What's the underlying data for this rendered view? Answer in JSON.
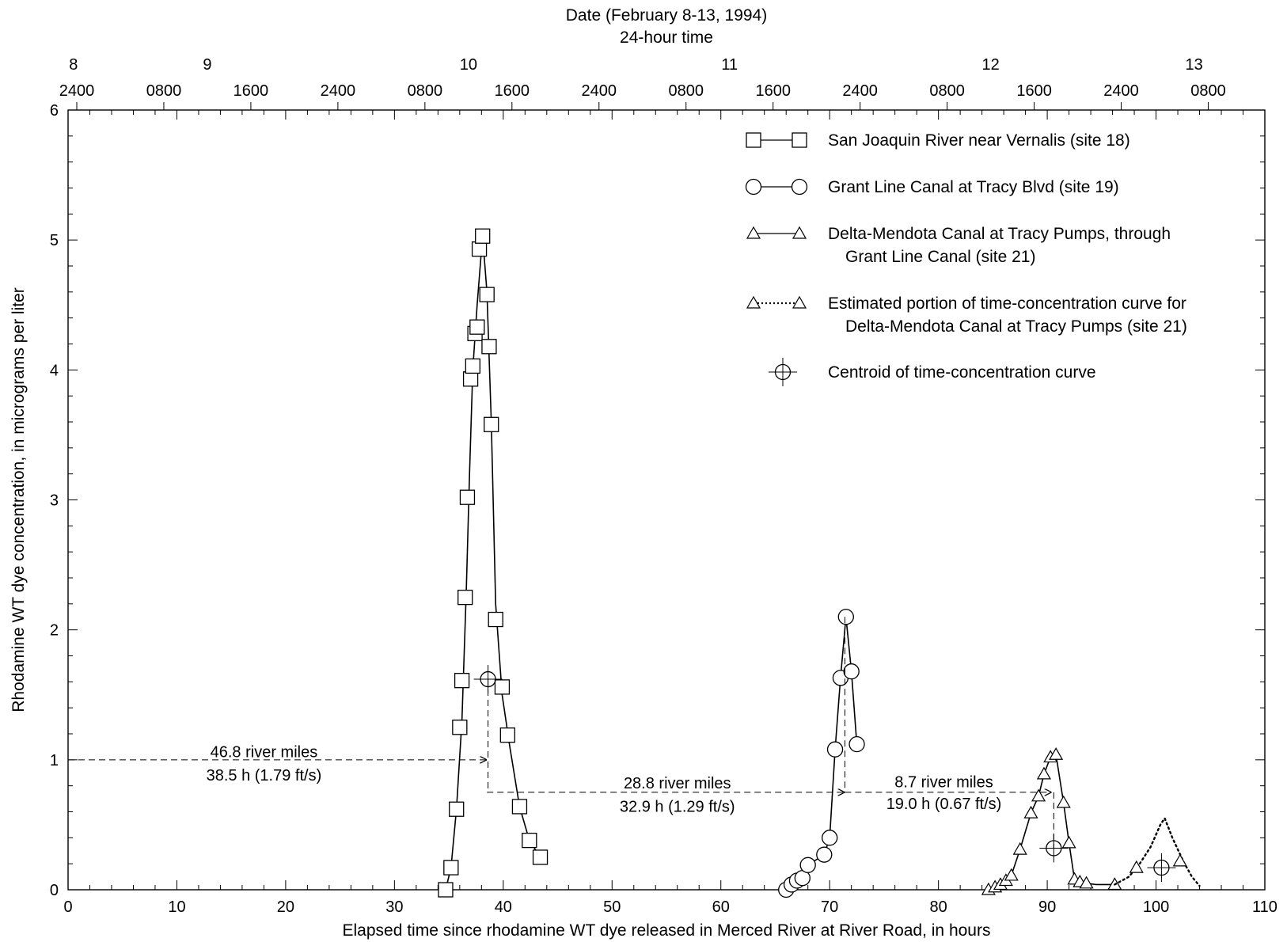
{
  "chart_data": {
    "type": "scatter",
    "xlabel": "Elapsed time since rhodamine WT dye released in Merced River at River Road, in hours",
    "ylabel": "Rhodamine WT dye concentration, in micrograms per liter",
    "top_title": "Date (February 8-13, 1994)",
    "top_subtitle": "24-hour time",
    "xlim": [
      0,
      110
    ],
    "ylim": [
      0,
      6
    ],
    "x_ticks": [
      0,
      10,
      20,
      30,
      40,
      50,
      60,
      70,
      80,
      90,
      100,
      110
    ],
    "y_ticks": [
      0,
      1,
      2,
      3,
      4,
      5,
      6
    ],
    "x_tick_labels": [
      "0",
      "10",
      "20",
      "30",
      "40",
      "50",
      "60",
      "70",
      "80",
      "90",
      "100",
      "110"
    ],
    "y_tick_labels": [
      "0",
      "1",
      "2",
      "3",
      "4",
      "5",
      "6"
    ],
    "x_minor_step": 2,
    "y_minor_step": 0.2,
    "top_time_labels": [
      {
        "x": 0.8,
        "label": "2400"
      },
      {
        "x": 8.8,
        "label": "0800"
      },
      {
        "x": 16.8,
        "label": "1600"
      },
      {
        "x": 24.8,
        "label": "2400"
      },
      {
        "x": 32.8,
        "label": "0800"
      },
      {
        "x": 40.8,
        "label": "1600"
      },
      {
        "x": 48.8,
        "label": "2400"
      },
      {
        "x": 56.8,
        "label": "0800"
      },
      {
        "x": 64.8,
        "label": "1600"
      },
      {
        "x": 72.8,
        "label": "2400"
      },
      {
        "x": 80.8,
        "label": "0800"
      },
      {
        "x": 88.8,
        "label": "1600"
      },
      {
        "x": 96.8,
        "label": "2400"
      },
      {
        "x": 104.8,
        "label": "0800"
      }
    ],
    "top_date_labels": [
      {
        "x": 0.5,
        "label": "8"
      },
      {
        "x": 12.8,
        "label": "9"
      },
      {
        "x": 36.8,
        "label": "10"
      },
      {
        "x": 60.8,
        "label": "11"
      },
      {
        "x": 84.8,
        "label": "12"
      },
      {
        "x": 103.5,
        "label": "13"
      }
    ],
    "legend_position": "top-right",
    "legend": [
      {
        "marker": "square",
        "line": "solid",
        "lines": [
          "San Joaquin River near Vernalis (site 18)"
        ]
      },
      {
        "marker": "circle",
        "line": "solid",
        "lines": [
          "Grant Line Canal at Tracy Blvd (site 19)"
        ]
      },
      {
        "marker": "triangle",
        "line": "solid",
        "lines": [
          "Delta-Mendota Canal at Tracy Pumps, through",
          "Grant Line Canal (site 21)"
        ]
      },
      {
        "marker": "triangle",
        "line": "dotted",
        "lines": [
          "Estimated portion of time-concentration curve for",
          "Delta-Mendota Canal at Tracy Pumps (site 21)"
        ]
      },
      {
        "marker": "centroid",
        "line": "none",
        "lines": [
          "Centroid of time-concentration curve"
        ]
      }
    ],
    "series": [
      {
        "marker": "square",
        "points": [
          [
            34.7,
            0.0
          ],
          [
            35.2,
            0.17
          ],
          [
            35.7,
            0.62
          ],
          [
            36.0,
            1.25
          ],
          [
            36.2,
            1.61
          ],
          [
            36.5,
            2.25
          ],
          [
            36.7,
            3.02
          ],
          [
            37.0,
            3.93
          ],
          [
            37.2,
            4.03
          ],
          [
            37.4,
            4.28
          ],
          [
            37.6,
            4.33
          ],
          [
            37.8,
            4.93
          ],
          [
            38.1,
            5.03
          ],
          [
            38.5,
            4.58
          ],
          [
            38.7,
            4.18
          ],
          [
            38.9,
            3.58
          ],
          [
            39.3,
            2.08
          ],
          [
            39.9,
            1.56
          ],
          [
            40.4,
            1.19
          ],
          [
            41.5,
            0.64
          ],
          [
            42.4,
            0.38
          ],
          [
            43.4,
            0.25
          ]
        ],
        "curve": [
          [
            34.7,
            0.0
          ],
          [
            35.2,
            0.17
          ],
          [
            35.7,
            0.62
          ],
          [
            36.2,
            1.3
          ],
          [
            36.6,
            2.3
          ],
          [
            36.9,
            3.2
          ],
          [
            37.2,
            4.0
          ],
          [
            37.6,
            4.5
          ],
          [
            38.1,
            5.03
          ],
          [
            38.5,
            4.6
          ],
          [
            38.9,
            3.6
          ],
          [
            39.3,
            2.2
          ],
          [
            39.9,
            1.5
          ],
          [
            40.6,
            1.1
          ],
          [
            41.5,
            0.64
          ],
          [
            42.4,
            0.38
          ],
          [
            43.4,
            0.25
          ]
        ]
      },
      {
        "marker": "circle",
        "points": [
          [
            66.0,
            0.0
          ],
          [
            66.5,
            0.04
          ],
          [
            67.0,
            0.07
          ],
          [
            67.5,
            0.09
          ],
          [
            68.0,
            0.19
          ],
          [
            69.5,
            0.27
          ],
          [
            70.0,
            0.4
          ],
          [
            70.5,
            1.08
          ],
          [
            71.0,
            1.63
          ],
          [
            71.5,
            2.1
          ],
          [
            72.0,
            1.68
          ],
          [
            72.5,
            1.12
          ]
        ],
        "curve": [
          [
            66.0,
            0.0
          ],
          [
            66.5,
            0.04
          ],
          [
            67.0,
            0.07
          ],
          [
            67.5,
            0.09
          ],
          [
            68.0,
            0.19
          ],
          [
            69.5,
            0.27
          ],
          [
            70.0,
            0.4
          ],
          [
            70.5,
            1.08
          ],
          [
            71.0,
            1.63
          ],
          [
            71.5,
            2.1
          ],
          [
            72.0,
            1.68
          ],
          [
            72.5,
            1.12
          ]
        ]
      },
      {
        "marker": "triangle",
        "points": [
          [
            84.6,
            0.0
          ],
          [
            85.2,
            0.02
          ],
          [
            85.7,
            0.04
          ],
          [
            86.2,
            0.07
          ],
          [
            86.7,
            0.11
          ],
          [
            87.5,
            0.31
          ],
          [
            88.5,
            0.59
          ],
          [
            89.2,
            0.72
          ],
          [
            89.7,
            0.89
          ],
          [
            90.3,
            1.02
          ],
          [
            90.8,
            1.04
          ],
          [
            91.5,
            0.67
          ],
          [
            92.0,
            0.36
          ],
          [
            92.5,
            0.08
          ],
          [
            93.0,
            0.06
          ],
          [
            93.6,
            0.05
          ],
          [
            96.2,
            0.04
          ]
        ],
        "curve": [
          [
            84.6,
            0.0
          ],
          [
            85.2,
            0.02
          ],
          [
            85.7,
            0.04
          ],
          [
            86.2,
            0.07
          ],
          [
            86.7,
            0.11
          ],
          [
            87.5,
            0.31
          ],
          [
            88.5,
            0.59
          ],
          [
            89.2,
            0.72
          ],
          [
            89.7,
            0.89
          ],
          [
            90.3,
            1.02
          ],
          [
            90.8,
            1.04
          ],
          [
            91.5,
            0.67
          ],
          [
            92.0,
            0.36
          ],
          [
            92.5,
            0.08
          ],
          [
            93.0,
            0.06
          ],
          [
            93.6,
            0.05
          ],
          [
            94.5,
            0.04
          ],
          [
            96.2,
            0.04
          ]
        ]
      },
      {
        "marker": "triangle",
        "points": [
          [
            98.2,
            0.17
          ],
          [
            102.2,
            0.22
          ]
        ],
        "curve": [
          [
            96.2,
            0.04
          ],
          [
            97.5,
            0.1
          ],
          [
            98.5,
            0.2
          ],
          [
            99.5,
            0.33
          ],
          [
            100.4,
            0.5
          ],
          [
            100.8,
            0.55
          ],
          [
            101.5,
            0.4
          ],
          [
            102.5,
            0.22
          ],
          [
            103.3,
            0.1
          ],
          [
            104.0,
            0.03
          ]
        ],
        "estimated": true
      }
    ],
    "centroids": [
      [
        38.6,
        1.62
      ],
      [
        90.6,
        0.32
      ],
      [
        100.5,
        0.17
      ]
    ],
    "annotations": [
      {
        "text": "46.8 river miles",
        "x": 18.0,
        "y": 1.02
      },
      {
        "text": "38.5 h (1.79 ft/s)",
        "x": 18.0,
        "y": 0.84
      },
      {
        "text": "28.8 river miles",
        "x": 56.0,
        "y": 0.78
      },
      {
        "text": "32.9 h (1.29 ft/s)",
        "x": 56.0,
        "y": 0.6
      },
      {
        "text": "8.7 river miles",
        "x": 80.5,
        "y": 0.79
      },
      {
        "text": "19.0 h (0.67 ft/s)",
        "x": 80.5,
        "y": 0.62
      }
    ],
    "arrows": [
      {
        "from": [
          0,
          1.0
        ],
        "to": [
          38.5,
          1.0
        ]
      },
      {
        "from": [
          38.5,
          0.75
        ],
        "to": [
          71.4,
          0.75
        ]
      },
      {
        "from": [
          71.4,
          0.75
        ],
        "to": [
          90.4,
          0.75
        ]
      }
    ],
    "drop_lines": [
      {
        "x": 38.6,
        "y_from": 1.62,
        "y_to": 0.75
      },
      {
        "x": 71.4,
        "y_from": 2.1,
        "y_to": 0.75
      },
      {
        "x": 90.6,
        "y_from": 0.75,
        "y_to": 0.32
      }
    ]
  }
}
